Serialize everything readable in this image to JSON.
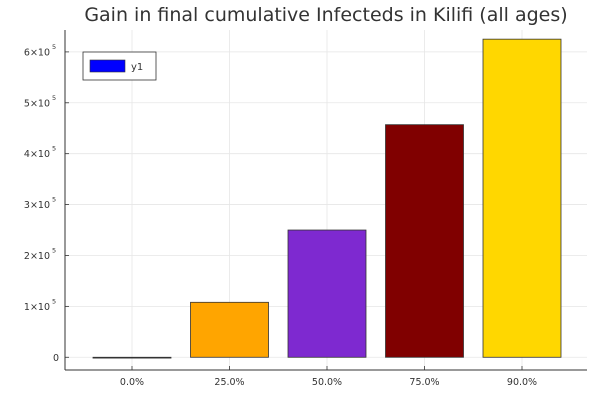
{
  "chart_data": {
    "type": "bar",
    "title": "Gain in final cumulative Infecteds in Kilifi (all ages)",
    "xlabel": "",
    "ylabel": "",
    "categories": [
      "0.0%",
      "25.0%",
      "50.0%",
      "75.0%",
      "90.0%"
    ],
    "series": [
      {
        "name": "y1",
        "values": [
          0,
          108000,
          250000,
          457000,
          625000
        ],
        "colors": [
          "#808080",
          "#ffa500",
          "#7e29d0",
          "#800000",
          "#ffd700"
        ]
      }
    ],
    "ylim": [
      -25000,
      643000
    ],
    "y_ticks": [
      {
        "value": 0,
        "label": "0"
      },
      {
        "value": 100000,
        "label": "1×10",
        "exp": "5"
      },
      {
        "value": 200000,
        "label": "2×10",
        "exp": "5"
      },
      {
        "value": 300000,
        "label": "3×10",
        "exp": "5"
      },
      {
        "value": 400000,
        "label": "4×10",
        "exp": "5"
      },
      {
        "value": 500000,
        "label": "5×10",
        "exp": "5"
      },
      {
        "value": 600000,
        "label": "6×10",
        "exp": "5"
      }
    ],
    "grid": true,
    "legend": {
      "placement": "top-left",
      "label": "y1",
      "swatch_color": "#0000ff"
    }
  }
}
